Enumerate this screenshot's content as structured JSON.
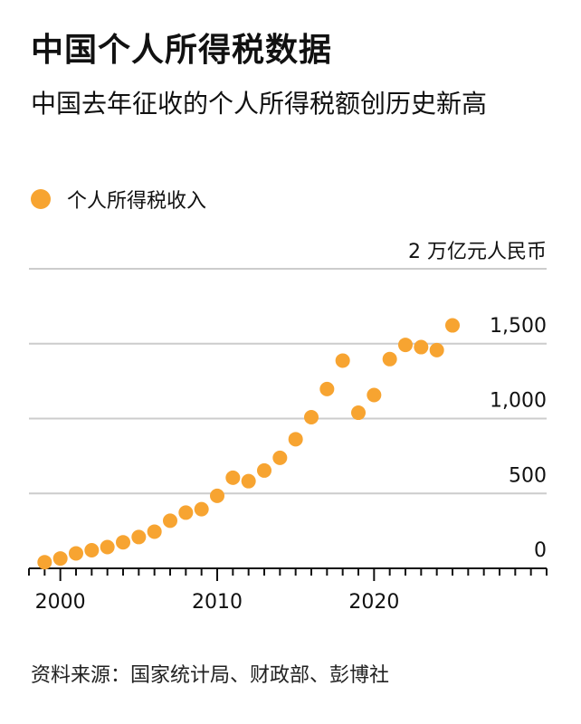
{
  "header": {
    "title": "中国个人所得税数据",
    "subtitle": "中国去年征收的个人所得税额创历史新高"
  },
  "legend": {
    "label": "个人所得税收入"
  },
  "footer": {
    "source": "资料来源：国家统计局、财政部、彭博社"
  },
  "colors": {
    "series": "#F7A431",
    "grid": "#cccccc",
    "axis": "#111111"
  },
  "chart_data": {
    "type": "scatter",
    "title": "中国个人所得税数据",
    "subtitle": "中国去年征收的个人所得税额创历史新高",
    "unit_label": "2 万亿元人民币",
    "xlim": [
      1998,
      2031
    ],
    "ylim": [
      0,
      2000
    ],
    "x_ticks": [
      2000,
      2010,
      2020
    ],
    "y_ticks": [
      0,
      500,
      1000,
      1500
    ],
    "y_tick_labels": [
      "0",
      "500",
      "1,000",
      "1,500"
    ],
    "grid": true,
    "legend_position": "top-left",
    "series": [
      {
        "name": "个人所得税收入",
        "x": [
          1999,
          2000,
          2001,
          2002,
          2003,
          2004,
          2005,
          2006,
          2007,
          2008,
          2009,
          2010,
          2011,
          2012,
          2013,
          2014,
          2015,
          2016,
          2017,
          2018,
          2019,
          2020,
          2021,
          2022,
          2023,
          2024,
          2025
        ],
        "y": [
          41,
          66,
          100,
          121,
          142,
          174,
          209,
          245,
          318,
          372,
          395,
          484,
          605,
          582,
          653,
          738,
          862,
          1009,
          1197,
          1387,
          1039,
          1157,
          1397,
          1492,
          1477,
          1457,
          1622
        ]
      }
    ]
  }
}
